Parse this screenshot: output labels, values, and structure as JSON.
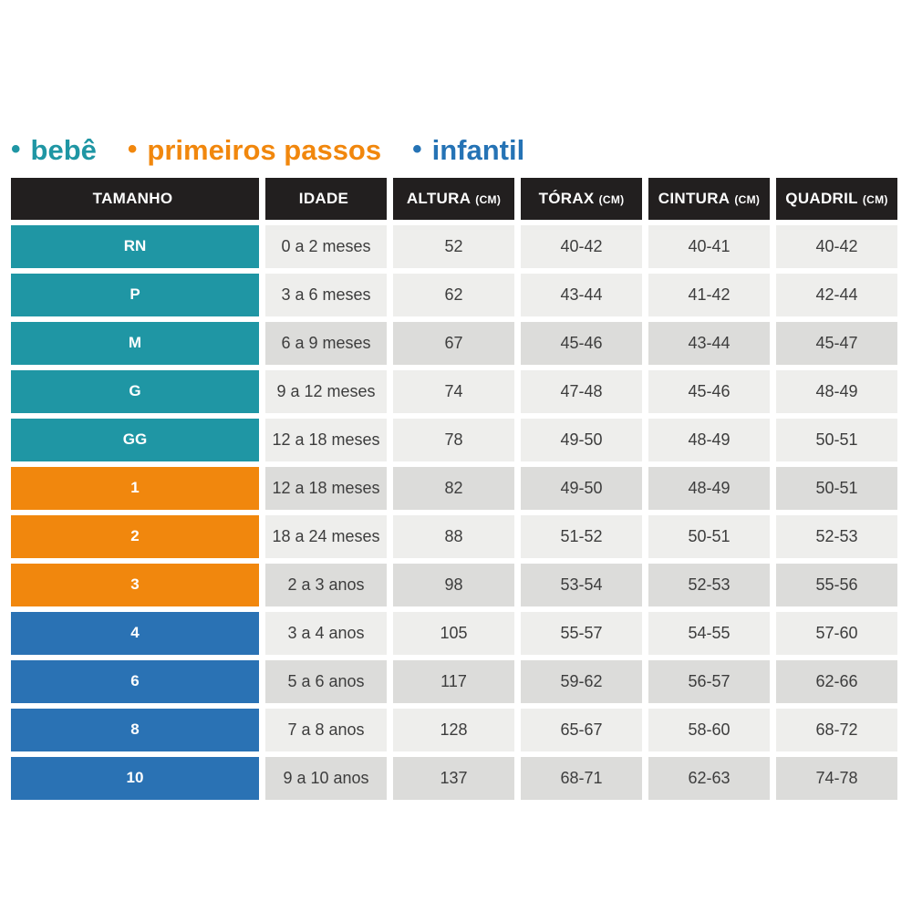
{
  "legend": {
    "items": [
      {
        "label": "bebê",
        "bullet": "•",
        "color": "#1f96a4"
      },
      {
        "label": "primeiros passos",
        "bullet": "•",
        "color": "#f1870d"
      },
      {
        "label": "infantil",
        "bullet": "•",
        "color": "#2573b5"
      }
    ]
  },
  "colors": {
    "bebe": "#1f96a4",
    "primeiros-passos": "#f1870d",
    "infantil": "#2a72b4",
    "header-bg": "#221f1f",
    "row-light": "#eeeeec",
    "row-dark": "#dcdcda"
  },
  "table": {
    "headers": [
      {
        "label": "TAMANHO",
        "unit": ""
      },
      {
        "label": "IDADE",
        "unit": ""
      },
      {
        "label": "ALTURA",
        "unit": "(CM)"
      },
      {
        "label": "TÓRAX",
        "unit": "(CM)"
      },
      {
        "label": "CINTURA",
        "unit": "(CM)"
      },
      {
        "label": "QUADRIL",
        "unit": "(CM)"
      }
    ],
    "rows": [
      {
        "size": "RN",
        "group": "bebe",
        "shade": "light",
        "idade": "0 a 2 meses",
        "altura": "52",
        "torax": "40-42",
        "cintura": "40-41",
        "quadril": "40-42"
      },
      {
        "size": "P",
        "group": "bebe",
        "shade": "light",
        "idade": "3 a 6 meses",
        "altura": "62",
        "torax": "43-44",
        "cintura": "41-42",
        "quadril": "42-44"
      },
      {
        "size": "M",
        "group": "bebe",
        "shade": "dark",
        "idade": "6 a 9 meses",
        "altura": "67",
        "torax": "45-46",
        "cintura": "43-44",
        "quadril": "45-47"
      },
      {
        "size": "G",
        "group": "bebe",
        "shade": "light",
        "idade": "9 a 12 meses",
        "altura": "74",
        "torax": "47-48",
        "cintura": "45-46",
        "quadril": "48-49"
      },
      {
        "size": "GG",
        "group": "bebe",
        "shade": "light",
        "idade": "12 a 18 meses",
        "altura": "78",
        "torax": "49-50",
        "cintura": "48-49",
        "quadril": "50-51"
      },
      {
        "size": "1",
        "group": "primeiros-passos",
        "shade": "dark",
        "idade": "12 a 18 meses",
        "altura": "82",
        "torax": "49-50",
        "cintura": "48-49",
        "quadril": "50-51"
      },
      {
        "size": "2",
        "group": "primeiros-passos",
        "shade": "light",
        "idade": "18 a 24 meses",
        "altura": "88",
        "torax": "51-52",
        "cintura": "50-51",
        "quadril": "52-53"
      },
      {
        "size": "3",
        "group": "primeiros-passos",
        "shade": "dark",
        "idade": "2 a 3 anos",
        "altura": "98",
        "torax": "53-54",
        "cintura": "52-53",
        "quadril": "55-56"
      },
      {
        "size": "4",
        "group": "infantil",
        "shade": "light",
        "idade": "3 a 4 anos",
        "altura": "105",
        "torax": "55-57",
        "cintura": "54-55",
        "quadril": "57-60"
      },
      {
        "size": "6",
        "group": "infantil",
        "shade": "dark",
        "idade": "5 a 6 anos",
        "altura": "117",
        "torax": "59-62",
        "cintura": "56-57",
        "quadril": "62-66"
      },
      {
        "size": "8",
        "group": "infantil",
        "shade": "light",
        "idade": "7 a 8 anos",
        "altura": "128",
        "torax": "65-67",
        "cintura": "58-60",
        "quadril": "68-72"
      },
      {
        "size": "10",
        "group": "infantil",
        "shade": "dark",
        "idade": "9 a 10 anos",
        "altura": "137",
        "torax": "68-71",
        "cintura": "62-63",
        "quadril": "74-78"
      }
    ]
  },
  "chart_data": {
    "type": "table",
    "legend": [
      "bebê",
      "primeiros passos",
      "infantil"
    ],
    "columns": [
      "TAMANHO",
      "IDADE",
      "ALTURA (CM)",
      "TÓRAX (CM)",
      "CINTURA (CM)",
      "QUADRIL (CM)"
    ],
    "rows": [
      [
        "RN",
        "0 a 2 meses",
        "52",
        "40-42",
        "40-41",
        "40-42"
      ],
      [
        "P",
        "3 a 6 meses",
        "62",
        "43-44",
        "41-42",
        "42-44"
      ],
      [
        "M",
        "6 a 9 meses",
        "67",
        "45-46",
        "43-44",
        "45-47"
      ],
      [
        "G",
        "9 a 12 meses",
        "74",
        "47-48",
        "45-46",
        "48-49"
      ],
      [
        "GG",
        "12 a 18 meses",
        "78",
        "49-50",
        "48-49",
        "50-51"
      ],
      [
        "1",
        "12 a 18 meses",
        "82",
        "49-50",
        "48-49",
        "50-51"
      ],
      [
        "2",
        "18 a 24 meses",
        "88",
        "51-52",
        "50-51",
        "52-53"
      ],
      [
        "3",
        "2 a 3 anos",
        "98",
        "53-54",
        "52-53",
        "55-56"
      ],
      [
        "4",
        "3 a 4 anos",
        "105",
        "55-57",
        "54-55",
        "57-60"
      ],
      [
        "6",
        "5 a 6 anos",
        "117",
        "59-62",
        "56-57",
        "62-66"
      ],
      [
        "8",
        "7 a 8 anos",
        "128",
        "65-67",
        "58-60",
        "68-72"
      ],
      [
        "10",
        "9 a 10 anos",
        "137",
        "68-71",
        "62-63",
        "74-78"
      ]
    ],
    "row_groups": [
      "bebê",
      "bebê",
      "bebê",
      "bebê",
      "bebê",
      "primeiros passos",
      "primeiros passos",
      "primeiros passos",
      "infantil",
      "infantil",
      "infantil",
      "infantil"
    ]
  }
}
